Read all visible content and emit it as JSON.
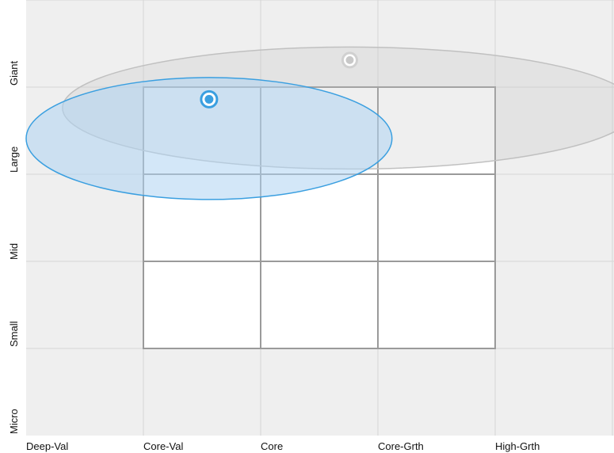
{
  "chart_data": {
    "type": "style-box",
    "x_categories": [
      "Deep-Val",
      "Core-Val",
      "Core",
      "Core-Grth",
      "High-Grth"
    ],
    "y_categories": [
      "Micro",
      "Small",
      "Mid",
      "Large",
      "Giant"
    ],
    "highlighted_box": {
      "x_range": [
        "Core-Val",
        "Core-Grth"
      ],
      "y_range": [
        "Small",
        "Giant"
      ]
    },
    "series": [
      {
        "color": "#3a9fe0",
        "centroid": {
          "x": 1.56,
          "y": 3.86
        },
        "spread": {
          "x_half": 1.56,
          "y_half": 0.7
        }
      },
      {
        "color": "#c8c8c8",
        "centroid": {
          "x": 2.76,
          "y": 4.31
        },
        "spread": {
          "x_half": 2.45,
          "y_half": 0.7
        }
      }
    ],
    "colors": {
      "background": "#efefef",
      "gridline": "#d6d6d6",
      "box_fill": "#ffffff",
      "box_line": "#9a9a9a",
      "series_fill": "#cfe5f6"
    }
  }
}
